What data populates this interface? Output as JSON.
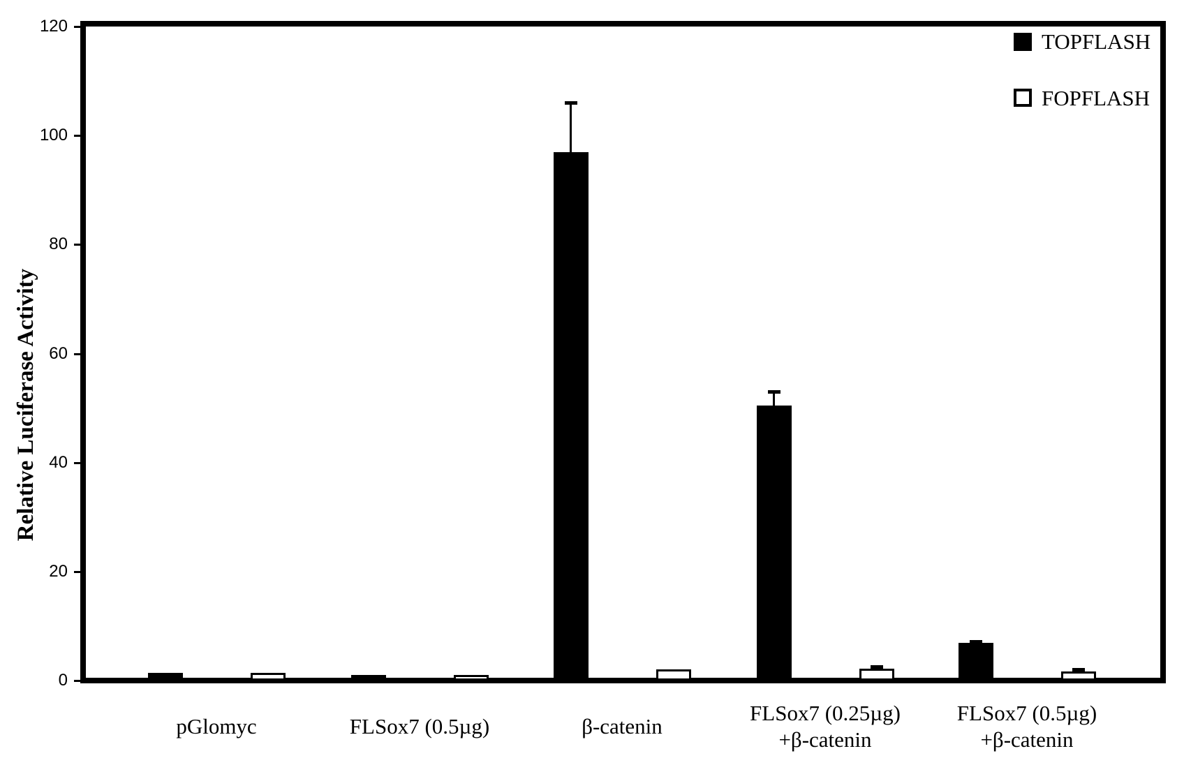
{
  "chart_data": {
    "type": "bar",
    "title": "",
    "xlabel": "",
    "ylabel": "Relative Luciferase Activity",
    "ylim": [
      0,
      120
    ],
    "yticks": [
      0,
      20,
      40,
      60,
      80,
      100,
      120
    ],
    "grid": false,
    "background_color": "#ffffff",
    "frame": "full-box",
    "legend_position": "top-right-inside",
    "legend": [
      {
        "name": "TOPFLASH",
        "fill": "#000000",
        "outline": "#000000"
      },
      {
        "name": "FOPFLASH",
        "fill": "#ffffff",
        "outline": "#000000"
      }
    ],
    "categories": [
      [
        "pGlomyc"
      ],
      [
        "FLSox7 (0.5µg)"
      ],
      [
        "β-catenin"
      ],
      [
        "FLSox7 (0.25µg)",
        "+β-catenin"
      ],
      [
        "FLSox7 (0.5µg)",
        "+β-catenin"
      ]
    ],
    "series": [
      {
        "name": "TOPFLASH",
        "fill": "#000000",
        "values": [
          0.9,
          0.5,
          96.5,
          50,
          6.4
        ],
        "errors": [
          0,
          0,
          9,
          2.5,
          0.3
        ]
      },
      {
        "name": "FOPFLASH",
        "fill": "#ffffff",
        "values": [
          0.9,
          0.5,
          1.5,
          1.7,
          1.1
        ],
        "errors": [
          0,
          0,
          0,
          0.4,
          0.4
        ]
      }
    ]
  }
}
